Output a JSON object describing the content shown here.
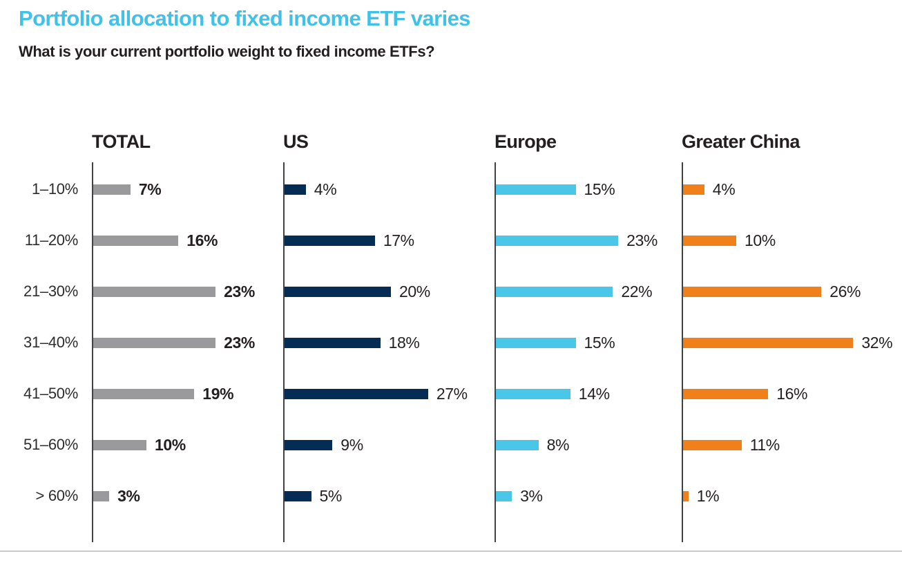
{
  "title": "Portfolio allocation to fixed income ETF varies",
  "subtitle": "What is your current portfolio weight to fixed income ETFs?",
  "colors": {
    "title_accent": "#3FC1E8",
    "text": "#231F20",
    "axis_line": "#414042",
    "bottom_rule": "#C9CACC",
    "total_bar": "#9A999B",
    "us_bar": "#042C55",
    "europe_bar": "#4AC7E8",
    "greater_china_bar": "#F08019"
  },
  "chart_data": {
    "type": "bar",
    "orientation": "horizontal",
    "title": "Portfolio allocation to fixed income ETF varies",
    "xlabel": "",
    "ylabel": "Current portfolio weight to fixed income ETFs",
    "categories": [
      "1–10%",
      "11–20%",
      "21–30%",
      "31–40%",
      "41–50%",
      "51–60%",
      "> 60%"
    ],
    "value_suffix": "%",
    "xlim": [
      0,
      35
    ],
    "grid": false,
    "legend": "none",
    "panel_headers_position": "top",
    "series": [
      {
        "name": "TOTAL",
        "color": "#9A999B",
        "bold_values": true,
        "values": [
          7,
          16,
          23,
          23,
          19,
          10,
          3
        ]
      },
      {
        "name": "US",
        "color": "#042C55",
        "bold_values": false,
        "values": [
          4,
          17,
          20,
          18,
          27,
          9,
          5
        ]
      },
      {
        "name": "Europe",
        "color": "#4AC7E8",
        "bold_values": false,
        "values": [
          15,
          23,
          22,
          15,
          14,
          8,
          3
        ]
      },
      {
        "name": "Greater China",
        "color": "#F08019",
        "bold_values": false,
        "values": [
          4,
          10,
          26,
          32,
          16,
          11,
          1
        ]
      }
    ]
  }
}
